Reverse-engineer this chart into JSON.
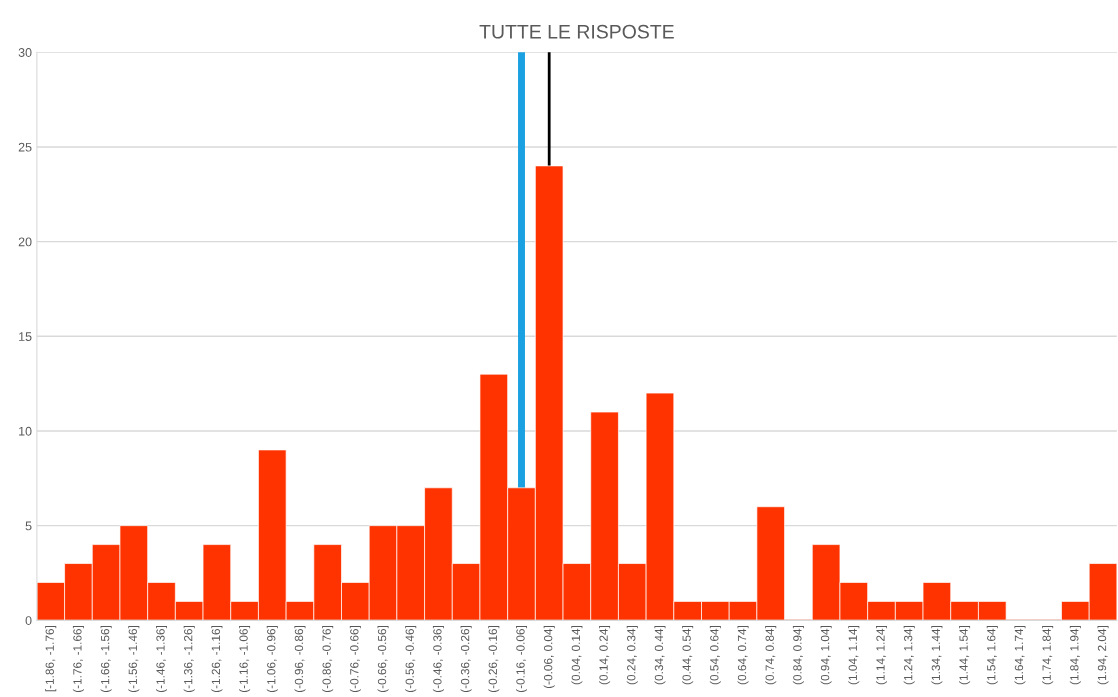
{
  "chart_data": {
    "type": "bar",
    "title": "TUTTE LE RISPOSTE",
    "color": "#ff3300",
    "categories": [
      "[-1.86, -1.76]",
      "(-1.76, -1.66]",
      "(-1.66, -1.56]",
      "(-1.56, -1.46]",
      "(-1.46, -1.36]",
      "(-1.36, -1.26]",
      "(-1.26, -1.16]",
      "(-1.16, -1.06]",
      "(-1.06, -0.96]",
      "(-0.96, -0.86]",
      "(-0.86, -0.76]",
      "(-0.76, -0.66]",
      "(-0.66, -0.56]",
      "(-0.56, -0.46]",
      "(-0.46, -0.36]",
      "(-0.36, -0.26]",
      "(-0.26, -0.16]",
      "(-0.16, -0.06]",
      "(-0.06, 0.04]",
      "(0.04, 0.14]",
      "(0.14, 0.24]",
      "(0.24, 0.34]",
      "(0.34, 0.44]",
      "(0.44, 0.54]",
      "(0.54, 0.64]",
      "(0.64, 0.74]",
      "(0.74, 0.84]",
      "(0.84, 0.94]",
      "(0.94, 1.04]",
      "(1.04, 1.14]",
      "(1.14, 1.24]",
      "(1.24, 1.34]",
      "(1.34, 1.44]",
      "(1.44, 1.54]",
      "(1.54, 1.64]",
      "(1.64, 1.74]",
      "(1.74, 1.84]",
      "(1.84, 1.94]",
      "(1.94, 2.04]"
    ],
    "values": [
      2,
      3,
      4,
      5,
      2,
      1,
      4,
      1,
      9,
      1,
      4,
      2,
      5,
      5,
      7,
      3,
      13,
      7,
      24,
      3,
      11,
      3,
      12,
      1,
      1,
      1,
      6,
      0,
      4,
      2,
      1,
      1,
      2,
      1,
      1,
      0,
      0,
      1,
      3
    ],
    "ylim": [
      0,
      30
    ],
    "yticks": [
      0,
      5,
      10,
      15,
      20,
      25,
      30
    ],
    "grid": "y",
    "ref_lines": [
      {
        "axis": "x",
        "value": "(-0.16, -0.06]",
        "color": "#1ba1e2"
      },
      {
        "axis": "x",
        "value": "(-0.06, 0.04]",
        "color": "#000000"
      }
    ]
  }
}
